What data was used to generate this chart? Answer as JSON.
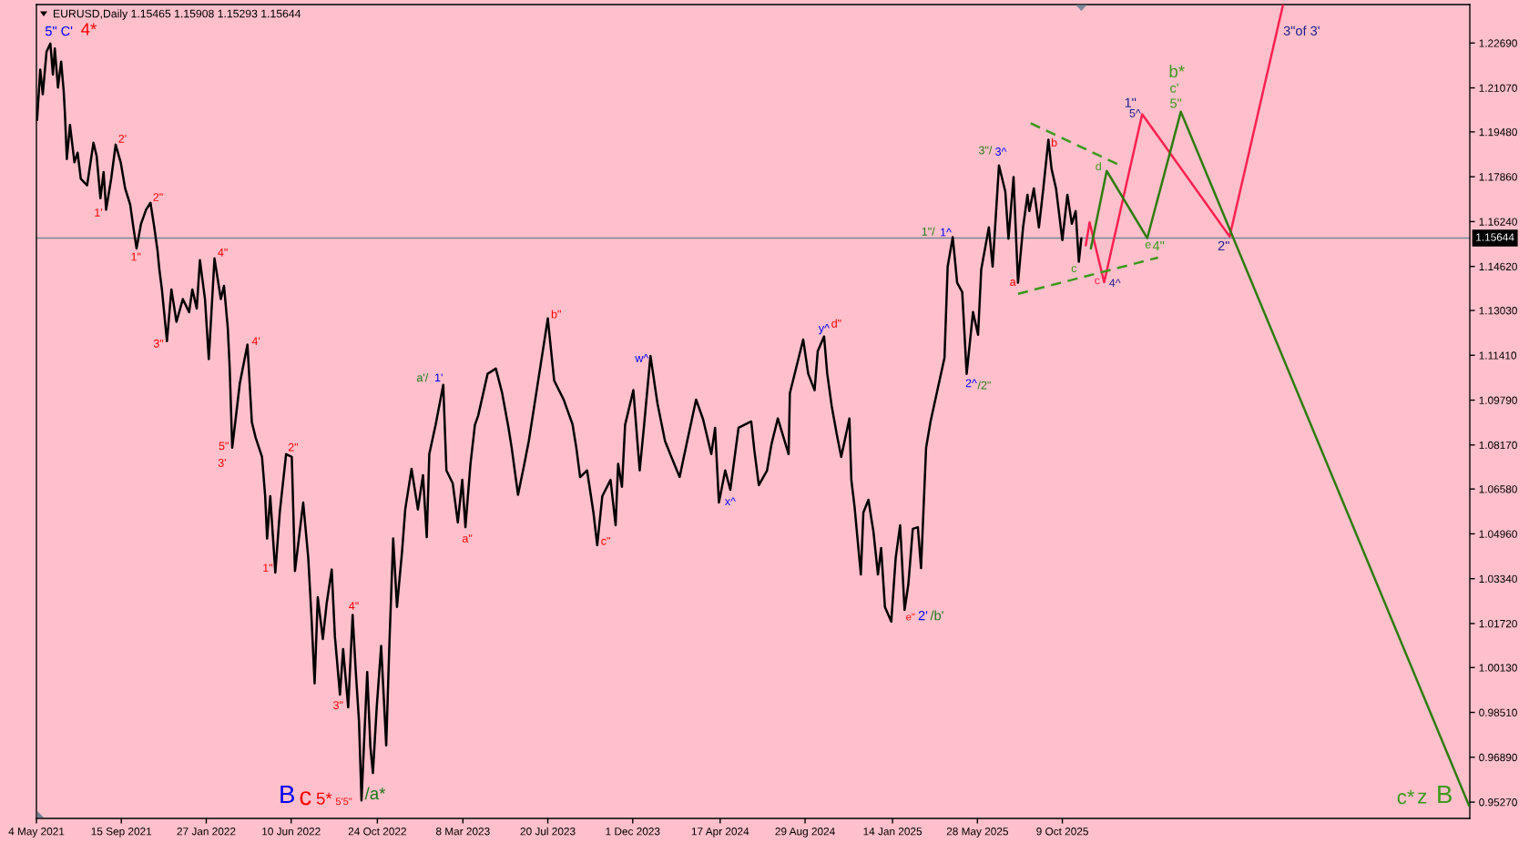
{
  "chart_data": {
    "type": "line",
    "title": "EURUSD,Daily 1.15465 1.15908 1.15293 1.15644",
    "xlim": [
      "2021-05-04",
      "2027-07-14"
    ],
    "ylim": [
      0.9468,
      1.2408
    ],
    "xticks": [
      {
        "value": "2021-05-04",
        "label": "4 May 2021"
      },
      {
        "value": "2021-09-15",
        "label": "15 Sep 2021"
      },
      {
        "value": "2022-01-27",
        "label": "27 Jan 2022"
      },
      {
        "value": "2022-06-10",
        "label": "10 Jun 2022"
      },
      {
        "value": "2022-10-24",
        "label": "24 Oct 2022"
      },
      {
        "value": "2023-03-08",
        "label": "8 Mar 2023"
      },
      {
        "value": "2023-07-20",
        "label": "20 Jul 2023"
      },
      {
        "value": "2023-12-01",
        "label": "1 Dec 2023"
      },
      {
        "value": "2024-04-17",
        "label": "17 Apr 2024"
      },
      {
        "value": "2024-08-29",
        "label": "29 Aug 2024"
      },
      {
        "value": "2025-01-14",
        "label": "14 Jan 2025"
      },
      {
        "value": "2025-05-28",
        "label": "28 May 2025"
      },
      {
        "value": "2025-10-09",
        "label": "9 Oct 2025"
      }
    ],
    "yticks": [
      {
        "value": 0.9527,
        "label": "0.95270"
      },
      {
        "value": 0.9689,
        "label": "0.96890"
      },
      {
        "value": 0.9851,
        "label": "0.98510"
      },
      {
        "value": 1.0013,
        "label": "1.00130"
      },
      {
        "value": 1.0172,
        "label": "1.01720"
      },
      {
        "value": 1.0334,
        "label": "1.03340"
      },
      {
        "value": 1.0496,
        "label": "1.04960"
      },
      {
        "value": 1.0658,
        "label": "1.06580"
      },
      {
        "value": 1.0817,
        "label": "1.08170"
      },
      {
        "value": 1.0979,
        "label": "1.09790"
      },
      {
        "value": 1.1141,
        "label": "1.11410"
      },
      {
        "value": 1.1303,
        "label": "1.13030"
      },
      {
        "value": 1.1462,
        "label": "1.14620"
      },
      {
        "value": 1.1624,
        "label": "1.16240"
      },
      {
        "value": 1.1786,
        "label": "1.17860"
      },
      {
        "value": 1.1948,
        "label": "1.19480"
      },
      {
        "value": 1.2107,
        "label": "1.21070"
      },
      {
        "value": 1.2269,
        "label": "1.22690"
      }
    ],
    "ref_lines": [
      {
        "axis": "y",
        "value": 1.15644,
        "label": "1.15644",
        "color": "#778899"
      }
    ],
    "series": [
      {
        "color": "#000000",
        "x": [
          "2021-05-05",
          "2021-05-10",
          "2021-05-14",
          "2021-05-20",
          "2021-05-26",
          "2021-05-30",
          "2021-06-02",
          "2021-06-07",
          "2021-06-12",
          "2021-06-16",
          "2021-06-18",
          "2021-06-21",
          "2021-06-26",
          "2021-07-03",
          "2021-07-08",
          "2021-07-13",
          "2021-07-23",
          "2021-08-02",
          "2021-08-07",
          "2021-08-13",
          "2021-08-18",
          "2021-08-22",
          "2021-08-30",
          "2021-09-06",
          "2021-09-14",
          "2021-09-21",
          "2021-09-29",
          "2021-10-04",
          "2021-10-09",
          "2021-10-16",
          "2021-10-24",
          "2021-10-31",
          "2021-11-06",
          "2021-11-11",
          "2021-11-14",
          "2021-11-18",
          "2021-11-26",
          "2021-12-03",
          "2021-12-11",
          "2021-12-21",
          "2021-12-31",
          "2022-01-05",
          "2022-01-12",
          "2022-01-17",
          "2022-01-25",
          "2022-01-31",
          "2022-02-09",
          "2022-02-19",
          "2022-02-24",
          "2022-03-02",
          "2022-03-05",
          "2022-03-09",
          "2022-03-21",
          "2022-04-02",
          "2022-04-09",
          "2022-04-15",
          "2022-04-25",
          "2022-04-30",
          "2022-05-03",
          "2022-05-08",
          "2022-05-16",
          "2022-05-23",
          "2022-06-02",
          "2022-06-11",
          "2022-06-16",
          "2022-06-29",
          "2022-07-07",
          "2022-07-12",
          "2022-07-17",
          "2022-07-22",
          "2022-07-30",
          "2022-08-05",
          "2022-08-13",
          "2022-08-18",
          "2022-08-26",
          "2022-08-31",
          "2022-09-08",
          "2022-09-15",
          "2022-09-20",
          "2022-09-25",
          "2022-09-29",
          "2022-10-08",
          "2022-10-13",
          "2022-10-17",
          "2022-10-23",
          "2022-10-30",
          "2022-11-07",
          "2022-11-12",
          "2022-11-18",
          "2022-11-24",
          "2022-12-02",
          "2022-12-07",
          "2022-12-17",
          "2022-12-27",
          "2023-01-04",
          "2023-01-10",
          "2023-01-14",
          "2023-01-24",
          "2023-02-05",
          "2023-02-10",
          "2023-02-20",
          "2023-02-28",
          "2023-03-07",
          "2023-03-12",
          "2023-03-20",
          "2023-03-27",
          "2023-04-01",
          "2023-04-16",
          "2023-04-29",
          "2023-05-09",
          "2023-05-19",
          "2023-05-24",
          "2023-06-03",
          "2023-06-13",
          "2023-06-20",
          "2023-06-30",
          "2023-07-20",
          "2023-07-30",
          "2023-08-14",
          "2023-08-28",
          "2023-09-03",
          "2023-09-09",
          "2023-09-20",
          "2023-09-30",
          "2023-10-06",
          "2023-10-14",
          "2023-10-27",
          "2023-11-04",
          "2023-11-08",
          "2023-11-14",
          "2023-11-19",
          "2023-12-02",
          "2023-12-12",
          "2023-12-19",
          "2023-12-29",
          "2024-01-09",
          "2024-01-21",
          "2024-01-31",
          "2024-02-13",
          "2024-02-25",
          "2024-03-10",
          "2024-03-21",
          "2024-04-03",
          "2024-04-09",
          "2024-04-15",
          "2024-04-25",
          "2024-05-03",
          "2024-05-16",
          "2024-06-05",
          "2024-06-10",
          "2024-06-17",
          "2024-06-30",
          "2024-07-07",
          "2024-07-17",
          "2024-08-03",
          "2024-08-05",
          "2024-08-26",
          "2024-09-03",
          "2024-09-13",
          "2024-09-18",
          "2024-09-28",
          "2024-10-03",
          "2024-10-10",
          "2024-10-18",
          "2024-10-25",
          "2024-11-07",
          "2024-11-10",
          "2024-11-15",
          "2024-11-25",
          "2024-11-29",
          "2024-12-07",
          "2024-12-15",
          "2024-12-22",
          "2024-12-27",
          "2025-01-02",
          "2025-01-12",
          "2025-01-19",
          "2025-01-26",
          "2025-02-02",
          "2025-02-08",
          "2025-02-15",
          "2025-02-23",
          "2025-02-28",
          "2025-03-08",
          "2025-03-15",
          "2025-04-06",
          "2025-04-11",
          "2025-04-19",
          "2025-04-26",
          "2025-05-04",
          "2025-05-11",
          "2025-05-21",
          "2025-05-29",
          "2025-06-03",
          "2025-06-15",
          "2025-06-21",
          "2025-07-01",
          "2025-07-11",
          "2025-07-16",
          "2025-07-24",
          "2025-07-31",
          "2025-08-08",
          "2025-08-15",
          "2025-08-18",
          "2025-08-25",
          "2025-09-02",
          "2025-09-09",
          "2025-09-17",
          "2025-09-22",
          "2025-09-29",
          "2025-10-09",
          "2025-10-17",
          "2025-10-24",
          "2025-10-30",
          "2025-11-04",
          "2025-11-08"
        ],
        "values": [
          1.1991,
          1.2173,
          1.2084,
          1.2238,
          1.2267,
          1.2155,
          1.2249,
          1.2108,
          1.2202,
          1.2096,
          1.2014,
          1.185,
          1.1973,
          1.1838,
          1.1873,
          1.1779,
          1.1755,
          1.1909,
          1.1861,
          1.1708,
          1.1803,
          1.1667,
          1.1779,
          1.1902,
          1.1838,
          1.1744,
          1.1685,
          1.1603,
          1.1527,
          1.1615,
          1.1667,
          1.1692,
          1.1603,
          1.1521,
          1.1451,
          1.1379,
          1.1192,
          1.1379,
          1.1262,
          1.1344,
          1.1297,
          1.1379,
          1.131,
          1.1485,
          1.1344,
          1.1127,
          1.1491,
          1.1344,
          1.1392,
          1.1239,
          1.1096,
          1.0807,
          1.104,
          1.118,
          1.0899,
          1.0843,
          1.0774,
          1.0632,
          1.0479,
          1.0632,
          1.0356,
          1.0573,
          1.0784,
          1.0774,
          1.0362,
          1.0609,
          1.0409,
          1.0198,
          0.9956,
          1.0267,
          1.0116,
          1.0244,
          1.0367,
          1.0126,
          0.9915,
          1.008,
          0.9869,
          1.0203,
          0.9997,
          0.9821,
          0.9533,
          0.9997,
          0.9727,
          0.9632,
          0.9869,
          1.0091,
          0.9732,
          1.0097,
          1.0479,
          1.0232,
          1.0432,
          1.0584,
          1.0731,
          1.0584,
          1.0708,
          1.0484,
          1.0784,
          1.089,
          1.1034,
          1.0725,
          1.0678,
          1.0537,
          1.0691,
          1.052,
          1.0749,
          1.089,
          1.0922,
          1.1074,
          1.1093,
          1.1004,
          1.0879,
          1.0807,
          1.0637,
          1.0749,
          1.0831,
          1.0978,
          1.1274,
          1.105,
          1.0981,
          1.0892,
          1.0807,
          1.0701,
          1.0725,
          1.0573,
          1.0455,
          1.0632,
          1.0691,
          1.0527,
          1.0749,
          1.0666,
          1.089,
          1.1015,
          1.0725,
          1.089,
          1.1139,
          1.0968,
          1.0831,
          1.0774,
          1.0701,
          1.0831,
          1.0981,
          1.091,
          1.0784,
          1.0879,
          1.0609,
          1.0725,
          1.0655,
          1.0879,
          1.0902,
          1.0797,
          1.0672,
          1.0725,
          1.082,
          1.0913,
          1.0784,
          1.1004,
          1.1198,
          1.1074,
          1.1015,
          1.1156,
          1.1209,
          1.1074,
          1.0958,
          1.0856,
          1.0774,
          1.0913,
          1.0691,
          1.0596,
          1.0349,
          1.0573,
          1.0619,
          1.0502,
          1.0349,
          1.0445,
          1.0232,
          1.0179,
          1.0409,
          1.0527,
          1.0221,
          1.0314,
          1.0514,
          1.052,
          1.0372,
          1.0807,
          1.0902,
          1.1132,
          1.1461,
          1.1568,
          1.1403,
          1.1369,
          1.1074,
          1.1297,
          1.1215,
          1.1451,
          1.1603,
          1.1461,
          1.1827,
          1.1732,
          1.1562,
          1.1785,
          1.1403,
          1.1603,
          1.1721,
          1.1662,
          1.1744,
          1.1603,
          1.1744,
          1.192,
          1.1814,
          1.1744,
          1.1557,
          1.1721,
          1.1616,
          1.1662,
          1.1479,
          1.1564
        ]
      },
      {
        "color": "#ff2050",
        "x": [
          "2025-11-15",
          "2025-11-21",
          "2025-12-14",
          "2026-02-12",
          "2026-06-30",
          "2026-09-22"
        ],
        "values": [
          1.1538,
          1.1621,
          1.1405,
          1.2012,
          1.157,
          1.2405
        ]
      },
      {
        "color": "#2e7d0e",
        "x": [
          "2025-11-23",
          "2025-12-18",
          "2026-02-20",
          "2026-04-14",
          "2027-07-13"
        ],
        "values": [
          1.1527,
          1.1807,
          1.1564,
          1.2021,
          0.9513
        ]
      },
      {
        "color": "#3a9a1a",
        "line_style": "dashed",
        "x": [
          "2025-08-20",
          "2026-01-08"
        ],
        "values": [
          1.1979,
          1.1827
        ]
      },
      {
        "color": "#3a9a1a",
        "line_style": "dashed",
        "x": [
          "2025-07-31",
          "2026-03-09"
        ],
        "values": [
          1.1363,
          1.1494
        ]
      }
    ],
    "annotations": [
      {
        "text": "5\" C'",
        "x": "2021-05-26",
        "y": 1.2267
      },
      {
        "text": "4*",
        "x": "2021-05-26",
        "y": 1.2267
      },
      {
        "text": "2'",
        "x": "2021-09-06",
        "y": 1.1902
      },
      {
        "text": "1'",
        "x": "2021-08-22",
        "y": 1.1667
      },
      {
        "text": "2\"",
        "x": "2021-10-31",
        "y": 1.1692
      },
      {
        "text": "1\"",
        "x": "2021-10-09",
        "y": 1.1527
      },
      {
        "text": "4\"",
        "x": "2022-02-09",
        "y": 1.1491
      },
      {
        "text": "3\"",
        "x": "2021-11-26",
        "y": 1.1192
      },
      {
        "text": "4'",
        "x": "2022-04-02",
        "y": 1.118
      },
      {
        "text": "a'/",
        "x": "2023-02-05",
        "y": 1.1034
      },
      {
        "text": "1'",
        "x": "2023-02-05",
        "y": 1.1034
      },
      {
        "text": "5\"",
        "x": "2022-03-09",
        "y": 1.0807
      },
      {
        "text": "3'",
        "x": "2022-03-09",
        "y": 1.0807
      },
      {
        "text": "2\"",
        "x": "2022-06-11",
        "y": 1.0774
      },
      {
        "text": "1\"",
        "x": "2022-05-16",
        "y": 1.0356
      },
      {
        "text": "4\"",
        "x": "2022-09-15",
        "y": 1.0203
      },
      {
        "text": "3\"",
        "x": "2022-09-08",
        "y": 0.9869
      },
      {
        "text": "B",
        "x": "2022-09-29",
        "y": 0.9533
      },
      {
        "text": "c",
        "x": "2022-09-29",
        "y": 0.9533
      },
      {
        "text": "5*",
        "x": "2022-09-29",
        "y": 0.9533
      },
      {
        "text": "5'5\"",
        "x": "2022-09-29",
        "y": 0.9533
      },
      {
        "text": "/a*",
        "x": "2022-09-29",
        "y": 0.9533
      },
      {
        "text": "a\"",
        "x": "2023-03-12",
        "y": 1.052
      },
      {
        "text": "b\"",
        "x": "2023-07-20",
        "y": 1.1274
      },
      {
        "text": "w^",
        "x": "2023-12-29",
        "y": 1.1139
      },
      {
        "text": "c\"",
        "x": "2023-10-06",
        "y": 1.0455
      },
      {
        "text": "x^",
        "x": "2024-04-15",
        "y": 1.0609
      },
      {
        "text": "y^",
        "x": "2024-09-28",
        "y": 1.1209
      },
      {
        "text": "d\"",
        "x": "2024-09-28",
        "y": 1.1209
      },
      {
        "text": "e\"",
        "x": "2025-01-12",
        "y": 1.0179
      },
      {
        "text": "2'",
        "x": "2025-01-12",
        "y": 1.0179
      },
      {
        "text": "/b'",
        "x": "2025-01-12",
        "y": 1.0179
      },
      {
        "text": "1\"/",
        "x": "2025-04-19",
        "y": 1.1568
      },
      {
        "text": "1^",
        "x": "2025-04-19",
        "y": 1.1568
      },
      {
        "text": "3\"/",
        "x": "2025-07-01",
        "y": 1.1827
      },
      {
        "text": "3^",
        "x": "2025-07-01",
        "y": 1.1827
      },
      {
        "text": "2^",
        "x": "2025-05-11",
        "y": 1.1074
      },
      {
        "text": "/2\"",
        "x": "2025-05-11",
        "y": 1.1074
      },
      {
        "text": "a",
        "x": "2025-07-31",
        "y": 1.1403
      },
      {
        "text": "b",
        "x": "2025-09-17",
        "y": 1.192
      },
      {
        "text": "c",
        "x": "2025-11-04",
        "y": 1.1479
      },
      {
        "text": "c",
        "x": "2025-12-14",
        "y": 1.1405
      },
      {
        "text": "4^",
        "x": "2025-12-14",
        "y": 1.1405
      },
      {
        "text": "d",
        "x": "2025-12-18",
        "y": 1.1807
      },
      {
        "text": "e",
        "x": "2026-02-20",
        "y": 1.1564
      },
      {
        "text": "4\"",
        "x": "2026-02-20",
        "y": 1.1564
      },
      {
        "text": "1\"",
        "x": "2026-02-12",
        "y": 1.2012
      },
      {
        "text": "5^",
        "x": "2026-02-12",
        "y": 1.2012
      },
      {
        "text": "b*",
        "x": "2026-04-14",
        "y": 1.2021
      },
      {
        "text": "c'",
        "x": "2026-04-14",
        "y": 1.2021
      },
      {
        "text": "5\"",
        "x": "2026-04-14",
        "y": 1.2021
      },
      {
        "text": "2\"",
        "x": "2026-06-30",
        "y": 1.157
      },
      {
        "text": "3\"of 3'",
        "x": "2026-09-22",
        "y": 1.2405
      },
      {
        "text": "c*",
        "x": "2027-07-13",
        "y": 0.9513
      },
      {
        "text": "z",
        "x": "2027-07-13",
        "y": 0.9513
      },
      {
        "text": "B",
        "x": "2027-07-13",
        "y": 0.9513
      }
    ]
  }
}
